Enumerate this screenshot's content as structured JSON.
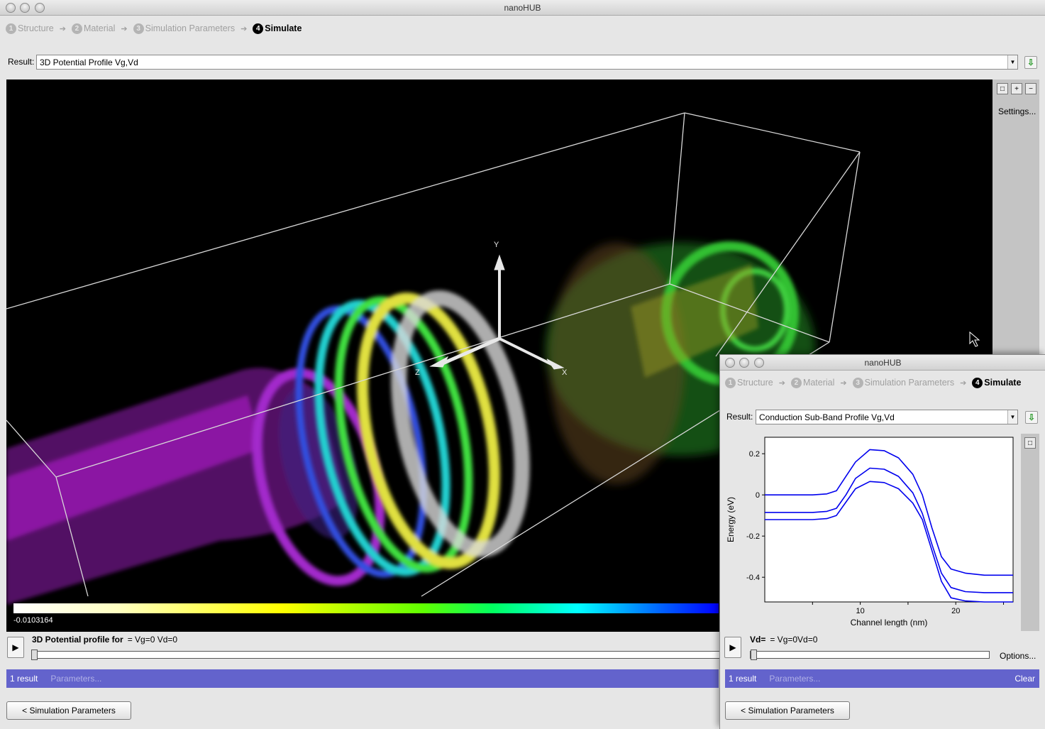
{
  "window": {
    "title": "nanoHUB"
  },
  "steps": [
    {
      "num": "1",
      "label": "Structure"
    },
    {
      "num": "2",
      "label": "Material"
    },
    {
      "num": "3",
      "label": "Simulation Parameters"
    },
    {
      "num": "4",
      "label": "Simulate"
    }
  ],
  "result": {
    "label": "Result:",
    "value": "3D Potential Profile Vg,Vd"
  },
  "viewer": {
    "toolbar": {
      "settings_label": "Settings...",
      "icons": [
        "reset-view-icon",
        "zoom-in-icon",
        "zoom-out-icon"
      ]
    },
    "legend": {
      "min_label": "-0.0103164"
    },
    "axis_labels": {
      "y": "Y",
      "x": "X",
      "z": "Z"
    }
  },
  "player": {
    "title": "3D Potential profile for",
    "value": "= Vg=0 Vd=0"
  },
  "status": {
    "count": "1 result",
    "params": "Parameters..."
  },
  "back_button": "< Simulation Parameters",
  "popup": {
    "title": "nanoHUB",
    "result": {
      "label": "Result:",
      "value": "Conduction Sub-Band Profile Vg,Vd"
    },
    "player": {
      "title": "Vd=",
      "value": "= Vg=0Vd=0",
      "options": "Options..."
    },
    "status": {
      "count": "1 result",
      "params": "Parameters...",
      "clear": "Clear"
    },
    "back_button": "< Simulation Parameters"
  },
  "chart_data": {
    "type": "line",
    "title": "",
    "xlabel": "Channel length (nm)",
    "ylabel": "Energy (eV)",
    "xlim": [
      0,
      26
    ],
    "ylim": [
      -0.52,
      0.28
    ],
    "xticks": [
      10,
      20
    ],
    "yticks": [
      0.2,
      0,
      -0.2,
      -0.4
    ],
    "ytick_labels": [
      "0.2",
      "0",
      "-0.2",
      "-0.4"
    ],
    "grid": false,
    "color": "#0000ee",
    "series": [
      {
        "x": [
          0,
          5,
          6.5,
          7.5,
          8.5,
          9.5,
          11,
          12.5,
          14,
          15.5,
          16.5,
          17.5,
          18.5,
          19.5,
          21,
          23,
          26
        ],
        "y": [
          0,
          0,
          0.005,
          0.02,
          0.09,
          0.16,
          0.22,
          0.215,
          0.18,
          0.1,
          0.0,
          -0.16,
          -0.3,
          -0.36,
          -0.38,
          -0.39,
          -0.39
        ]
      },
      {
        "x": [
          0,
          5,
          6.5,
          7.5,
          8.5,
          9.5,
          11,
          12.5,
          14,
          15.5,
          16.5,
          17.5,
          18.5,
          19.5,
          21,
          23,
          26
        ],
        "y": [
          -0.085,
          -0.085,
          -0.08,
          -0.065,
          0.0,
          0.08,
          0.13,
          0.125,
          0.09,
          0.01,
          -0.09,
          -0.24,
          -0.38,
          -0.45,
          -0.47,
          -0.475,
          -0.475
        ]
      },
      {
        "x": [
          0,
          5,
          6.5,
          7.5,
          8.5,
          9.5,
          11,
          12.5,
          14,
          15.5,
          16.5,
          17.5,
          18.5,
          19.5,
          21,
          23,
          26
        ],
        "y": [
          -0.12,
          -0.12,
          -0.115,
          -0.1,
          -0.035,
          0.03,
          0.065,
          0.06,
          0.03,
          -0.04,
          -0.12,
          -0.27,
          -0.42,
          -0.5,
          -0.515,
          -0.52,
          -0.52
        ]
      }
    ]
  }
}
